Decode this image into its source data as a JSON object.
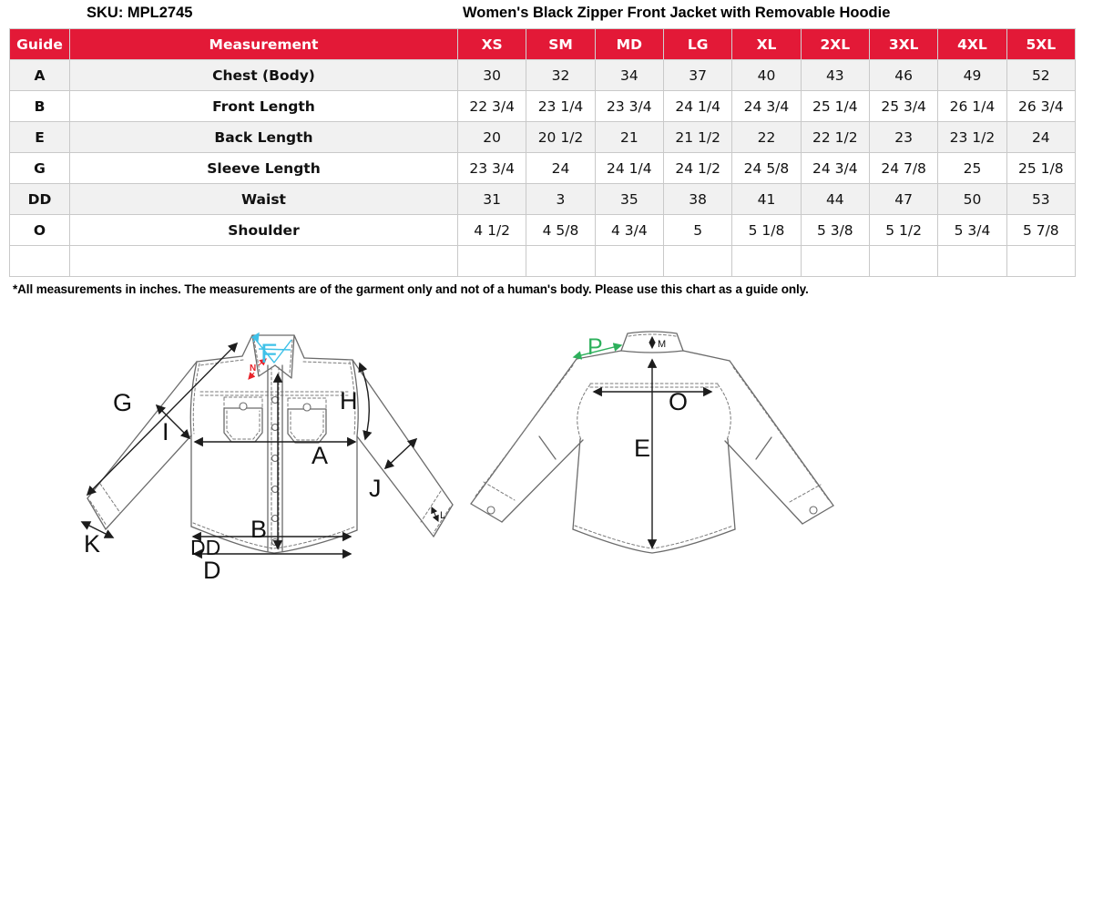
{
  "header": {
    "sku": "SKU: MPL2745",
    "title": "Women's Black Zipper Front Jacket with Removable Hoodie"
  },
  "table": {
    "columns": [
      "Guide",
      "Measurement",
      "XS",
      "SM",
      "MD",
      "LG",
      "XL",
      "2XL",
      "3XL",
      "4XL",
      "5XL"
    ],
    "rows": [
      {
        "guide": "A",
        "measurement": "Chest (Body)",
        "values": [
          "30",
          "32",
          "34",
          "37",
          "40",
          "43",
          "46",
          "49",
          "52"
        ]
      },
      {
        "guide": "B",
        "measurement": "Front Length",
        "values": [
          "22 3/4",
          "23 1/4",
          "23 3/4",
          "24 1/4",
          "24 3/4",
          "25 1/4",
          "25 3/4",
          "26 1/4",
          "26 3/4"
        ]
      },
      {
        "guide": "E",
        "measurement": "Back Length",
        "values": [
          "20",
          "20 1/2",
          "21",
          "21 1/2",
          "22",
          "22 1/2",
          "23",
          "23 1/2",
          "24"
        ]
      },
      {
        "guide": "G",
        "measurement": "Sleeve Length",
        "values": [
          "23 3/4",
          "24",
          "24 1/4",
          "24 1/2",
          "24 5/8",
          "24 3/4",
          "24 7/8",
          "25",
          "25 1/8"
        ]
      },
      {
        "guide": "DD",
        "measurement": "Waist",
        "values": [
          "31",
          "3",
          "35",
          "38",
          "41",
          "44",
          "47",
          "50",
          "53"
        ]
      },
      {
        "guide": "O",
        "measurement": "Shoulder",
        "values": [
          "4 1/2",
          "4 5/8",
          "4 3/4",
          "5",
          "5 1/8",
          "5 3/8",
          "5 1/2",
          "5 3/4",
          "5 7/8"
        ]
      },
      {
        "guide": "",
        "measurement": "",
        "values": [
          "",
          "",
          "",
          "",
          "",
          "",
          "",
          "",
          ""
        ]
      }
    ],
    "note": "*All measurements in inches. The measurements are of the garment only and not of a human's body. Please use this chart as a guide only."
  },
  "diagrams": {
    "front": {
      "sleeve_length": "G",
      "armhole_inner": "I",
      "collar_spread": "F",
      "neck": "N",
      "armhole_curve": "H",
      "chest": "A",
      "forearm": "J",
      "cuff_right": "L",
      "front_length": "B",
      "cuff_left": "K",
      "waist": "DD",
      "sweep": "D"
    },
    "back": {
      "shoulder_seam": "P",
      "collar_height": "M",
      "shoulder_width": "O",
      "back_length": "E"
    }
  },
  "colors": {
    "header_bg": "#e31937",
    "header_fg": "#ffffff",
    "row_alt": "#f1f1f1",
    "label_cyan": "#3fc1e8",
    "label_red": "#e8232a",
    "label_green": "#2eb05c"
  }
}
